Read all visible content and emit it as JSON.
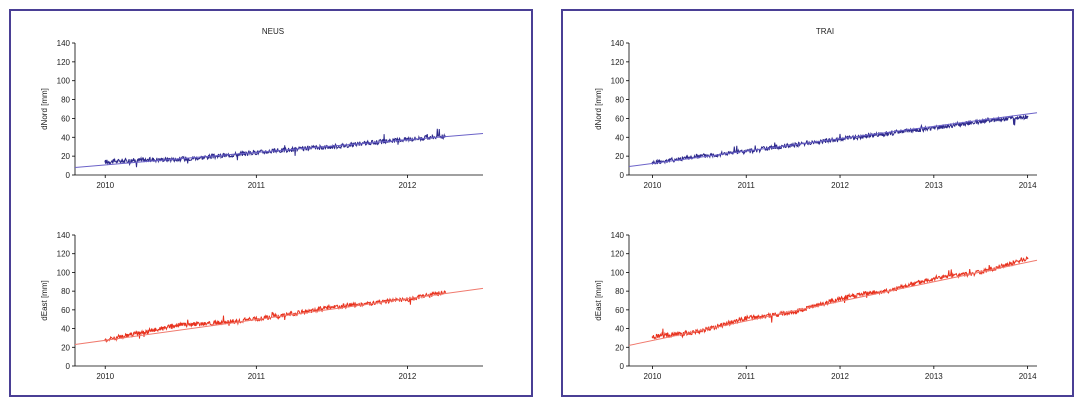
{
  "colors": {
    "north": "#2e2a8c",
    "east": "#e8321e",
    "fit_north": "#6b62c8",
    "fit_east": "#f07a6e",
    "frame": "#4a3f95"
  },
  "chart_data": [
    {
      "id": "neus",
      "title": "NEUS",
      "subplots": [
        {
          "type": "line",
          "ylabel": "dNord [mm]",
          "color_key": "north",
          "fit_color_key": "fit_north",
          "ylim": [
            0,
            140
          ],
          "yticks": [
            0,
            20,
            40,
            60,
            80,
            100,
            120,
            140
          ],
          "xlim": [
            2009.8,
            2012.5
          ],
          "xticks": [
            2010,
            2011,
            2012
          ],
          "x": [
            2010.0,
            2010.25,
            2010.5,
            2010.75,
            2011.0,
            2011.25,
            2011.5,
            2011.75,
            2012.0,
            2012.25
          ],
          "y": [
            14,
            16,
            17,
            20,
            24,
            27,
            30,
            34,
            38,
            41
          ],
          "fit": {
            "x": [
              2009.8,
              2012.5
            ],
            "y": [
              8,
              44
            ]
          }
        },
        {
          "type": "line",
          "ylabel": "dEast [mm]",
          "color_key": "east",
          "fit_color_key": "fit_east",
          "ylim": [
            0,
            140
          ],
          "yticks": [
            0,
            20,
            40,
            60,
            80,
            100,
            120,
            140
          ],
          "xlim": [
            2009.8,
            2012.5
          ],
          "xticks": [
            2010,
            2011,
            2012
          ],
          "x": [
            2010.0,
            2010.25,
            2010.5,
            2010.75,
            2011.0,
            2011.25,
            2011.5,
            2011.75,
            2012.0,
            2012.25
          ],
          "y": [
            28,
            36,
            44,
            46,
            50,
            56,
            63,
            67,
            71,
            79
          ],
          "fit": {
            "x": [
              2009.8,
              2012.5
            ],
            "y": [
              23,
              83
            ]
          }
        }
      ]
    },
    {
      "id": "trai",
      "title": "TRAI",
      "subplots": [
        {
          "type": "line",
          "ylabel": "dNord [mm]",
          "color_key": "north",
          "fit_color_key": "fit_north",
          "ylim": [
            0,
            140
          ],
          "yticks": [
            0,
            20,
            40,
            60,
            80,
            100,
            120,
            140
          ],
          "xlim": [
            2009.75,
            2014.1
          ],
          "xticks": [
            2010,
            2011,
            2012,
            2013,
            2014
          ],
          "x": [
            2010.0,
            2010.5,
            2011.0,
            2011.5,
            2012.0,
            2012.5,
            2013.0,
            2013.5,
            2014.0
          ],
          "y": [
            13,
            20,
            25,
            32,
            38,
            44,
            50,
            57,
            62
          ],
          "fit": {
            "x": [
              2009.75,
              2014.1
            ],
            "y": [
              9,
              66
            ]
          }
        },
        {
          "type": "line",
          "ylabel": "dEast [mm]",
          "color_key": "east",
          "fit_color_key": "fit_east",
          "ylim": [
            0,
            140
          ],
          "yticks": [
            0,
            20,
            40,
            60,
            80,
            100,
            120,
            140
          ],
          "xlim": [
            2009.75,
            2014.1
          ],
          "xticks": [
            2010,
            2011,
            2012,
            2013,
            2014
          ],
          "x": [
            2010.0,
            2010.5,
            2011.0,
            2011.5,
            2012.0,
            2012.3,
            2012.5,
            2013.0,
            2013.5,
            2014.0
          ],
          "y": [
            31,
            37,
            51,
            57,
            72,
            78,
            80,
            94,
            100,
            115
          ],
          "fit": {
            "x": [
              2009.75,
              2014.1
            ],
            "y": [
              22,
              113
            ]
          }
        }
      ]
    }
  ]
}
